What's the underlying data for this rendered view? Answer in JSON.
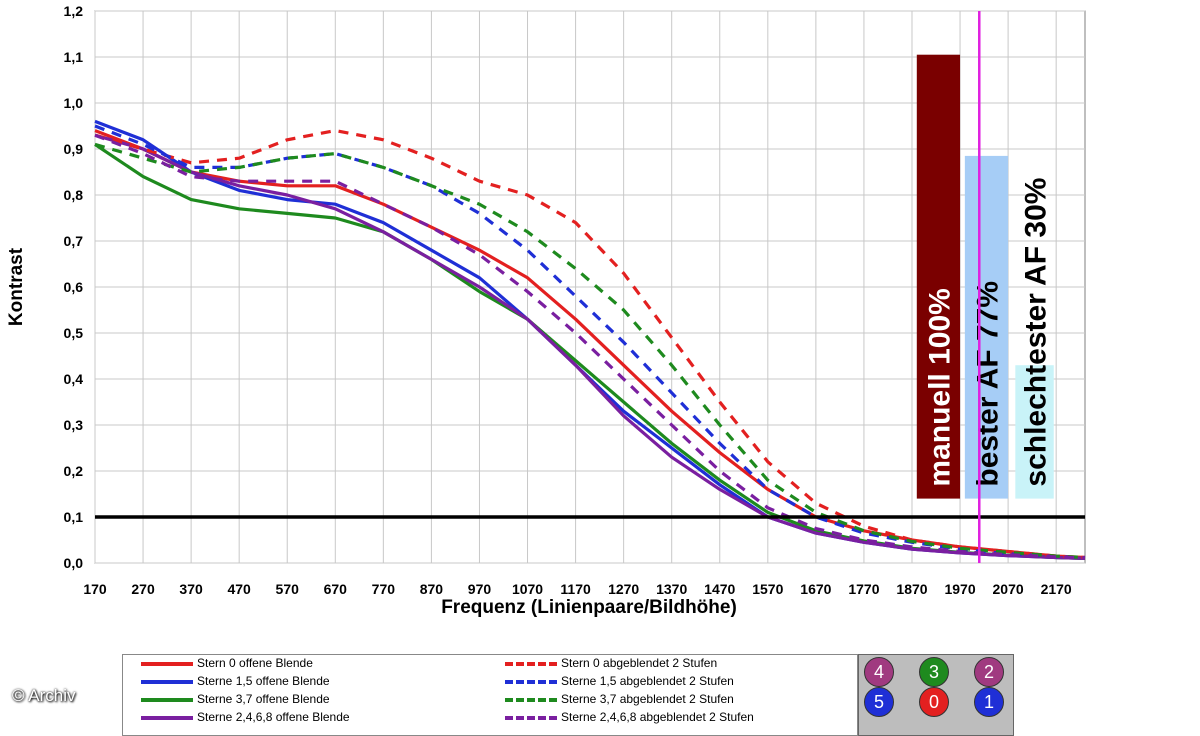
{
  "chart_data": {
    "type": "line",
    "xlabel": "Frequenz (Linienpaare/Bildhöhe)",
    "ylabel": "Kontrast",
    "xlim": [
      170,
      2230
    ],
    "ylim": [
      0,
      1.2
    ],
    "x_ticks": [
      "170",
      "270",
      "370",
      "470",
      "570",
      "670",
      "770",
      "870",
      "970",
      "1070",
      "1170",
      "1270",
      "1370",
      "1470",
      "1570",
      "1670",
      "1770",
      "1870",
      "1970",
      "2070",
      "2170"
    ],
    "y_ticks": [
      "0,0",
      "0,1",
      "0,2",
      "0,3",
      "0,4",
      "0,5",
      "0,6",
      "0,7",
      "0,8",
      "0,9",
      "1,0",
      "1,1",
      "1,2"
    ],
    "grid": true,
    "x": [
      170,
      270,
      370,
      470,
      570,
      670,
      770,
      870,
      970,
      1070,
      1170,
      1270,
      1370,
      1470,
      1570,
      1670,
      1770,
      1870,
      1970,
      2070,
      2170,
      2230
    ],
    "series": [
      {
        "name": "Stern 0 offene Blende",
        "color": "#e32020",
        "dash": false,
        "values": [
          0.94,
          0.9,
          0.85,
          0.83,
          0.82,
          0.82,
          0.78,
          0.73,
          0.68,
          0.62,
          0.53,
          0.43,
          0.33,
          0.24,
          0.16,
          0.1,
          0.07,
          0.05,
          0.035,
          0.025,
          0.015,
          0.012
        ]
      },
      {
        "name": "Sterne 1,5 offene Blende",
        "color": "#1f2fd6",
        "dash": false,
        "values": [
          0.96,
          0.92,
          0.85,
          0.81,
          0.79,
          0.78,
          0.74,
          0.68,
          0.62,
          0.53,
          0.43,
          0.33,
          0.25,
          0.17,
          0.1,
          0.065,
          0.045,
          0.03,
          0.022,
          0.016,
          0.012,
          0.01
        ]
      },
      {
        "name": "Sterne 3,7 offene Blende",
        "color": "#1e8a1e",
        "dash": false,
        "values": [
          0.91,
          0.84,
          0.79,
          0.77,
          0.76,
          0.75,
          0.72,
          0.66,
          0.59,
          0.53,
          0.44,
          0.35,
          0.26,
          0.18,
          0.11,
          0.07,
          0.048,
          0.032,
          0.023,
          0.017,
          0.012,
          0.01
        ]
      },
      {
        "name": "Sterne 2,4,6,8 offene Blende",
        "color": "#7a1fa0",
        "dash": false,
        "values": [
          0.93,
          0.9,
          0.85,
          0.82,
          0.8,
          0.77,
          0.72,
          0.66,
          0.6,
          0.53,
          0.43,
          0.32,
          0.23,
          0.16,
          0.1,
          0.065,
          0.045,
          0.03,
          0.022,
          0.016,
          0.012,
          0.01
        ]
      },
      {
        "name": "Stern 0 abgeblendet 2 Stufen",
        "color": "#e32020",
        "dash": true,
        "values": [
          0.93,
          0.9,
          0.87,
          0.88,
          0.92,
          0.94,
          0.92,
          0.88,
          0.83,
          0.8,
          0.74,
          0.63,
          0.49,
          0.35,
          0.22,
          0.13,
          0.08,
          0.05,
          0.035,
          0.025,
          0.015,
          0.012
        ]
      },
      {
        "name": "Sterne 1,5 abgeblendet 2 Stufen",
        "color": "#1f2fd6",
        "dash": true,
        "values": [
          0.95,
          0.91,
          0.86,
          0.86,
          0.88,
          0.89,
          0.86,
          0.82,
          0.76,
          0.68,
          0.58,
          0.48,
          0.37,
          0.26,
          0.16,
          0.1,
          0.065,
          0.045,
          0.03,
          0.02,
          0.014,
          0.012
        ]
      },
      {
        "name": "Sterne 3,7 abgeblendet 2 Stufen",
        "color": "#1e8a1e",
        "dash": true,
        "values": [
          0.91,
          0.88,
          0.85,
          0.86,
          0.88,
          0.89,
          0.86,
          0.82,
          0.78,
          0.72,
          0.64,
          0.55,
          0.43,
          0.3,
          0.18,
          0.11,
          0.07,
          0.047,
          0.032,
          0.023,
          0.015,
          0.012
        ]
      },
      {
        "name": "Sterne 2,4,6,8 abgeblendet 2 Stufen",
        "color": "#7a1fa0",
        "dash": true,
        "values": [
          0.93,
          0.89,
          0.84,
          0.83,
          0.83,
          0.83,
          0.78,
          0.73,
          0.67,
          0.59,
          0.5,
          0.4,
          0.3,
          0.2,
          0.12,
          0.075,
          0.05,
          0.035,
          0.025,
          0.018,
          0.013,
          0.011
        ]
      }
    ],
    "threshold": {
      "value": 0.1,
      "color": "#000000"
    },
    "marker_line": {
      "x": 2010,
      "color": "#e020e0"
    },
    "bars": [
      {
        "label": "manuell 100%",
        "x_from": 1880,
        "x_to": 1970,
        "value": 1.105,
        "bottom": 0.14,
        "color": "#7a0000",
        "text_color": "#ffffff"
      },
      {
        "label": "bester AF 77%",
        "x_from": 1980,
        "x_to": 2070,
        "value": 0.885,
        "bottom": 0.14,
        "color": "#a6cdf6",
        "text_color": "#000000"
      },
      {
        "label": "schlechtester AF 30%",
        "x_from": 2085,
        "x_to": 2165,
        "value": 0.43,
        "bottom": 0.14,
        "color": "#c9f3f8",
        "text_color": "#000000"
      }
    ]
  },
  "legend": {
    "items": [
      {
        "label": "Stern 0 offene Blende",
        "color": "#e32020",
        "dash": false
      },
      {
        "label": "Sterne 1,5 offene Blende",
        "color": "#1f2fd6",
        "dash": false
      },
      {
        "label": "Sterne 3,7 offene Blende",
        "color": "#1e8a1e",
        "dash": false
      },
      {
        "label": "Sterne 2,4,6,8 offene Blende",
        "color": "#7a1fa0",
        "dash": false
      },
      {
        "label": "Stern 0 abgeblendet 2 Stufen",
        "color": "#e32020",
        "dash": true
      },
      {
        "label": "Sterne 1,5 abgeblendet 2 Stufen",
        "color": "#1f2fd6",
        "dash": true
      },
      {
        "label": "Sterne 3,7 abgeblendet 2 Stufen",
        "color": "#1e8a1e",
        "dash": true
      },
      {
        "label": "Sterne 2,4,6,8 abgeblendet 2 Stufen",
        "color": "#7a1fa0",
        "dash": true
      }
    ]
  },
  "stars": [
    {
      "label": "4",
      "color": "#a03a80"
    },
    {
      "label": "3",
      "color": "#1e8a1e"
    },
    {
      "label": "2",
      "color": "#a03a80"
    },
    {
      "label": "5",
      "color": "#1f2fd6"
    },
    {
      "label": "0",
      "color": "#e32020"
    },
    {
      "label": "1",
      "color": "#1f2fd6"
    }
  ],
  "credit": "© Archiv"
}
